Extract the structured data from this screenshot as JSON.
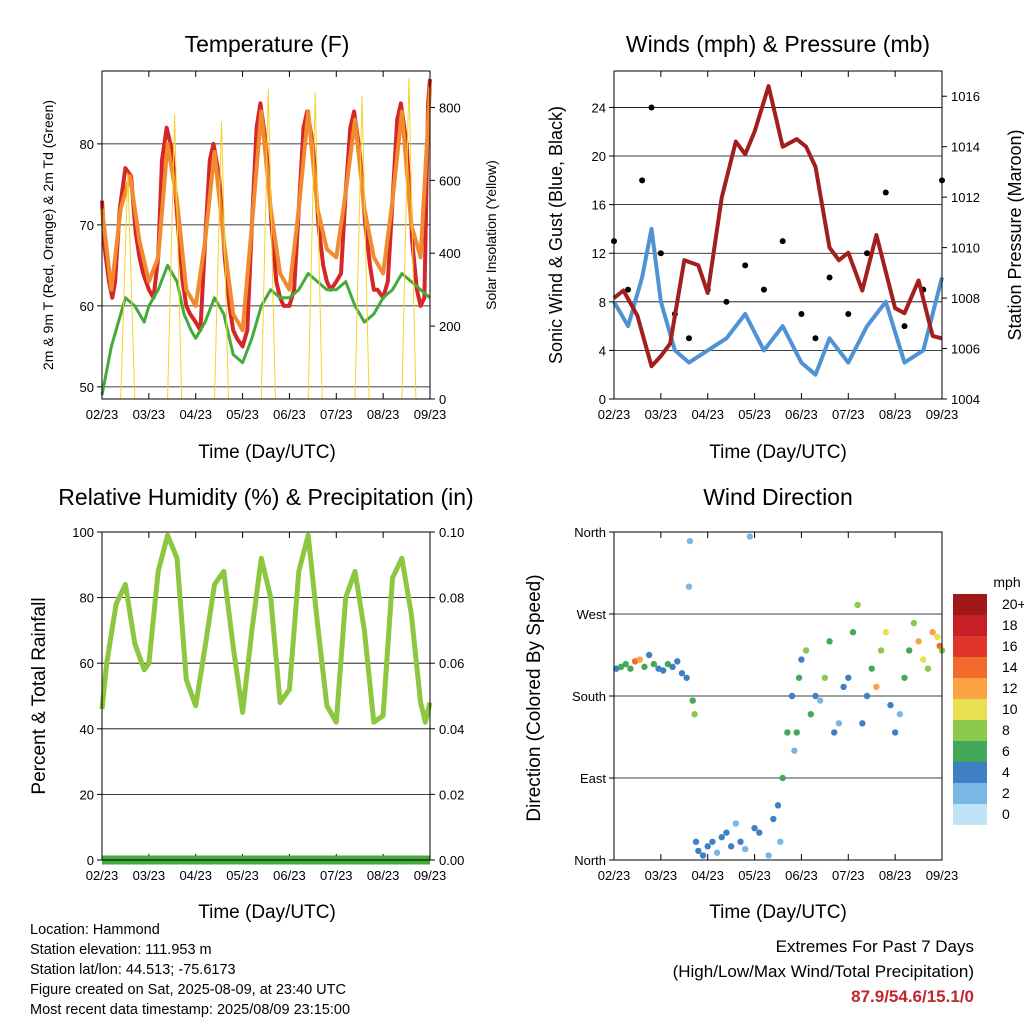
{
  "charts": {
    "temperature": {
      "title": "Temperature (F)",
      "xlabel": "Time (Day/UTC)",
      "ylabel_left": "2m & 9m T (Red, Orange) & 2m Td (Green)",
      "ylabel_right": "Solar Insolation (Yellow)"
    },
    "winds": {
      "title": "Winds (mph) & Pressure (mb)",
      "xlabel": "Time (Day/UTC)",
      "ylabel_left": "Sonic Wind & Gust (Blue, Black)",
      "ylabel_right": "Station Pressure (Maroon)"
    },
    "humidity": {
      "title": "Relative Humidity (%) & Precipitation (in)",
      "xlabel": "Time (Day/UTC)",
      "ylabel_left": "Percent & Total Rainfall"
    },
    "direction": {
      "title": "Wind Direction",
      "xlabel": "Time (Day/UTC)",
      "ylabel_left": "Direction (Colored By Speed)"
    }
  },
  "chart_data": [
    {
      "id": "temperature",
      "type": "line",
      "title": "Temperature (F)",
      "xlabel": "Time (Day/UTC)",
      "ylabel": "2m & 9m T (Red, Orange) & 2m Td (Green)",
      "y2label": "Solar Insolation (Yellow)",
      "x_ticks": [
        "02/23",
        "03/23",
        "04/23",
        "05/23",
        "06/23",
        "07/23",
        "08/23",
        "09/23"
      ],
      "ylim": [
        48.5,
        89
      ],
      "y_ticks": [
        50,
        60,
        70,
        80
      ],
      "y2lim": [
        0,
        900
      ],
      "y2_ticks": [
        0,
        200,
        400,
        600,
        800
      ],
      "grid": true,
      "series": [
        {
          "name": "2m T",
          "color": "#d62728",
          "x": [
            0,
            0.06,
            0.15,
            0.22,
            0.28,
            0.38,
            0.5,
            0.62,
            0.72,
            0.8,
            0.88,
            1.0,
            1.1,
            1.2,
            1.28,
            1.38,
            1.5,
            1.62,
            1.72,
            1.8,
            1.88,
            2.0,
            2.1,
            2.2,
            2.3,
            2.38,
            2.5,
            2.62,
            2.72,
            2.8,
            2.88,
            3.0,
            3.1,
            3.2,
            3.3,
            3.38,
            3.5,
            3.62,
            3.72,
            3.8,
            3.88,
            4.0,
            4.1,
            4.2,
            4.3,
            4.38,
            4.5,
            4.62,
            4.72,
            4.8,
            4.88,
            5.0,
            5.1,
            5.2,
            5.3,
            5.38,
            5.5,
            5.62,
            5.72,
            5.8,
            5.88,
            6.0,
            6.1,
            6.2,
            6.3,
            6.38,
            6.5,
            6.62,
            6.72,
            6.8,
            6.88,
            6.96,
            7.0
          ],
          "values": [
            73,
            67,
            63,
            61,
            63,
            72,
            77,
            76,
            69,
            66,
            64,
            62,
            61,
            66,
            78,
            82,
            79,
            70,
            63,
            60,
            59,
            58,
            57,
            68,
            78,
            80,
            76,
            66,
            60,
            57,
            56,
            55,
            57,
            70,
            82,
            85,
            80,
            70,
            63,
            61,
            60,
            60,
            62,
            72,
            82,
            84,
            80,
            70,
            65,
            63,
            62,
            63,
            64,
            74,
            82,
            84,
            79,
            70,
            65,
            62,
            62,
            61,
            63,
            73,
            83,
            85,
            80,
            68,
            62,
            60,
            61,
            85,
            88
          ]
        },
        {
          "name": "9m T",
          "color": "#f28a2e",
          "x": [
            0,
            0.2,
            0.4,
            0.6,
            0.8,
            1.0,
            1.2,
            1.4,
            1.6,
            1.8,
            2.0,
            2.2,
            2.4,
            2.6,
            2.8,
            3.0,
            3.2,
            3.4,
            3.6,
            3.8,
            4.0,
            4.2,
            4.4,
            4.6,
            4.8,
            5.0,
            5.2,
            5.4,
            5.6,
            5.8,
            6.0,
            6.2,
            6.4,
            6.6,
            6.8,
            7.0
          ],
          "values": [
            72,
            62,
            72,
            76,
            68,
            63,
            66,
            80,
            73,
            62,
            60,
            68,
            79,
            68,
            59,
            57,
            70,
            84,
            72,
            64,
            62,
            72,
            84,
            72,
            67,
            66,
            74,
            83,
            72,
            66,
            64,
            73,
            84,
            70,
            66,
            87
          ]
        },
        {
          "name": "2m Td",
          "color": "#44aa3c",
          "x": [
            0,
            0.1,
            0.2,
            0.35,
            0.5,
            0.7,
            0.9,
            1.0,
            1.2,
            1.4,
            1.6,
            1.75,
            1.9,
            2.0,
            2.2,
            2.4,
            2.6,
            2.8,
            3.0,
            3.2,
            3.4,
            3.6,
            3.8,
            4.0,
            4.2,
            4.4,
            4.6,
            4.8,
            5.0,
            5.2,
            5.4,
            5.6,
            5.8,
            6.0,
            6.2,
            6.4,
            6.6,
            6.8,
            7.0
          ],
          "values": [
            49,
            52,
            55,
            58,
            61,
            60,
            58,
            60,
            62,
            65,
            63,
            59,
            57,
            56,
            58,
            61,
            59,
            54,
            53,
            56,
            60,
            62,
            61,
            61,
            62,
            64,
            63,
            62,
            62,
            63,
            60,
            58,
            59,
            61,
            62,
            64,
            63,
            62,
            61
          ]
        },
        {
          "name": "Solar Insolation",
          "color": "#f5d327",
          "axis": "right",
          "x": [
            0.4,
            0.55,
            0.7,
            1.4,
            1.55,
            1.7,
            2.4,
            2.55,
            2.7,
            3.4,
            3.55,
            3.7,
            4.4,
            4.55,
            4.7,
            5.4,
            5.55,
            5.7,
            6.4,
            6.55,
            6.7
          ],
          "values": [
            0,
            620,
            0,
            0,
            780,
            0,
            0,
            760,
            0,
            0,
            850,
            0,
            0,
            840,
            0,
            0,
            830,
            0,
            0,
            880,
            0
          ]
        }
      ]
    },
    {
      "id": "winds",
      "type": "line",
      "title": "Winds (mph) & Pressure (mb)",
      "xlabel": "Time (Day/UTC)",
      "ylabel": "Sonic Wind & Gust (Blue, Black)",
      "y2label": "Station Pressure (Maroon)",
      "x_ticks": [
        "02/23",
        "03/23",
        "04/23",
        "05/23",
        "06/23",
        "07/23",
        "08/23",
        "09/23"
      ],
      "ylim": [
        0,
        27
      ],
      "y_ticks": [
        0,
        4,
        8,
        12,
        16,
        20,
        24
      ],
      "y2lim": [
        1004,
        1017
      ],
      "y2_ticks": [
        1004,
        1006,
        1008,
        1010,
        1012,
        1014,
        1016
      ],
      "grid": true,
      "series": [
        {
          "name": "Sonic Wind",
          "color": "#4f93d4",
          "x": [
            0,
            0.3,
            0.6,
            0.8,
            1.0,
            1.3,
            1.6,
            2.0,
            2.4,
            2.8,
            3.2,
            3.6,
            4.0,
            4.3,
            4.6,
            5.0,
            5.4,
            5.8,
            6.2,
            6.6,
            7.0
          ],
          "values": [
            8,
            6,
            10,
            14,
            8,
            4,
            3,
            4,
            5,
            7,
            4,
            6,
            3,
            2,
            5,
            3,
            6,
            8,
            3,
            4,
            10
          ]
        },
        {
          "name": "Gust",
          "color": "#000000",
          "x": [
            0,
            0.3,
            0.6,
            0.8,
            1.0,
            1.3,
            1.6,
            2.0,
            2.4,
            2.8,
            3.2,
            3.6,
            4.0,
            4.3,
            4.6,
            5.0,
            5.4,
            5.8,
            6.2,
            6.6,
            7.0
          ],
          "values": [
            13,
            9,
            18,
            24,
            12,
            7,
            5,
            9,
            8,
            11,
            9,
            13,
            7,
            5,
            10,
            7,
            12,
            17,
            6,
            9,
            18
          ]
        },
        {
          "name": "Station Pressure",
          "color": "#a31f1f",
          "axis": "right",
          "x": [
            0,
            0.2,
            0.5,
            0.8,
            1.0,
            1.2,
            1.5,
            1.8,
            2.0,
            2.3,
            2.6,
            2.8,
            3.0,
            3.3,
            3.6,
            3.9,
            4.1,
            4.3,
            4.6,
            4.8,
            5.0,
            5.3,
            5.6,
            6.0,
            6.2,
            6.5,
            6.8,
            7.0
          ],
          "values": [
            1008,
            1008.3,
            1007.3,
            1005.3,
            1005.7,
            1006.2,
            1009.5,
            1009.3,
            1008.2,
            1012,
            1014.2,
            1013.7,
            1014.6,
            1016.4,
            1014,
            1014.3,
            1014,
            1013.2,
            1010,
            1009.5,
            1009.8,
            1008.3,
            1010.5,
            1007.6,
            1007.4,
            1008.7,
            1006.5,
            1006.4
          ]
        }
      ]
    },
    {
      "id": "humidity",
      "type": "line",
      "title": "Relative Humidity (%) & Precipitation (in)",
      "xlabel": "Time (Day/UTC)",
      "ylabel": "Percent & Total Rainfall",
      "x_ticks": [
        "02/23",
        "03/23",
        "04/23",
        "05/23",
        "06/23",
        "07/23",
        "08/23",
        "09/23"
      ],
      "ylim": [
        0,
        100
      ],
      "y_ticks": [
        0,
        20,
        40,
        60,
        80,
        100
      ],
      "y2lim": [
        0,
        0.1
      ],
      "y2_ticks": [
        "0.00",
        "0.02",
        "0.04",
        "0.06",
        "0.08",
        "0.10"
      ],
      "grid": true,
      "series": [
        {
          "name": "Relative Humidity",
          "color": "#8dc63f",
          "x": [
            0,
            0.1,
            0.3,
            0.5,
            0.7,
            0.9,
            1.0,
            1.2,
            1.4,
            1.6,
            1.8,
            2.0,
            2.2,
            2.4,
            2.6,
            2.8,
            3.0,
            3.2,
            3.4,
            3.6,
            3.8,
            4.0,
            4.2,
            4.4,
            4.6,
            4.8,
            5.0,
            5.2,
            5.4,
            5.6,
            5.8,
            6.0,
            6.2,
            6.4,
            6.6,
            6.8,
            6.9,
            7.0
          ],
          "values": [
            46,
            60,
            78,
            84,
            66,
            58,
            60,
            88,
            99,
            92,
            55,
            47,
            65,
            84,
            88,
            65,
            45,
            70,
            92,
            80,
            48,
            52,
            88,
            99,
            72,
            47,
            42,
            80,
            88,
            70,
            42,
            44,
            86,
            92,
            75,
            48,
            42,
            48
          ]
        },
        {
          "name": "Precipitation",
          "color": "#44aa3c",
          "axis": "right",
          "x": [
            0,
            7
          ],
          "values": [
            0,
            0
          ]
        }
      ]
    },
    {
      "id": "direction",
      "type": "scatter",
      "title": "Wind Direction",
      "xlabel": "Time (Day/UTC)",
      "ylabel": "Direction (Colored By Speed)",
      "x_ticks": [
        "02/23",
        "03/23",
        "04/23",
        "05/23",
        "06/23",
        "07/23",
        "08/23",
        "09/23"
      ],
      "y_ticks": [
        "North",
        "East",
        "South",
        "West",
        "North"
      ],
      "ylim": [
        0,
        360
      ],
      "grid": true,
      "legend": {
        "title": "mph",
        "position": "right",
        "labels": [
          "20+",
          "18",
          "16",
          "14",
          "12",
          "10",
          "8",
          "6",
          "4",
          "2",
          "0"
        ],
        "colors": [
          "#a01818",
          "#c42025",
          "#e0352b",
          "#f26a2c",
          "#f9a342",
          "#e8e04f",
          "#8cc84b",
          "#43a857",
          "#3f80c4",
          "#7ab7e4",
          "#bfe4f8"
        ]
      },
      "points_x": [
        0.05,
        0.15,
        0.25,
        0.35,
        0.45,
        0.55,
        0.65,
        0.75,
        0.85,
        0.95,
        1.05,
        1.15,
        1.25,
        1.35,
        1.45,
        1.55,
        1.6,
        1.62,
        1.68,
        1.72,
        1.75,
        1.8,
        1.9,
        2.0,
        2.1,
        2.2,
        2.3,
        2.4,
        2.5,
        2.6,
        2.7,
        2.8,
        2.9,
        3.0,
        3.1,
        3.3,
        3.4,
        3.5,
        3.55,
        3.6,
        3.7,
        3.8,
        3.85,
        3.9,
        3.95,
        4.0,
        4.1,
        4.2,
        4.3,
        4.4,
        4.5,
        4.6,
        4.7,
        4.8,
        4.9,
        5.0,
        5.1,
        5.2,
        5.3,
        5.4,
        5.5,
        5.6,
        5.7,
        5.8,
        5.9,
        6.0,
        6.1,
        6.2,
        6.3,
        6.4,
        6.5,
        6.6,
        6.7,
        6.8,
        6.9,
        6.95,
        7.0
      ],
      "points_y": [
        210,
        212,
        215,
        210,
        218,
        220,
        212,
        225,
        215,
        210,
        208,
        215,
        212,
        218,
        205,
        200,
        300,
        350,
        175,
        160,
        20,
        10,
        5,
        15,
        20,
        8,
        25,
        30,
        15,
        40,
        20,
        12,
        355,
        35,
        30,
        5,
        45,
        60,
        20,
        90,
        140,
        180,
        120,
        140,
        200,
        220,
        230,
        160,
        180,
        175,
        200,
        240,
        140,
        150,
        190,
        200,
        250,
        280,
        150,
        180,
        210,
        190,
        230,
        250,
        170,
        140,
        160,
        200,
        230,
        260,
        240,
        220,
        210,
        250,
        245,
        235,
        230
      ],
      "points_speed": [
        4,
        5,
        6,
        5,
        14,
        12,
        6,
        4,
        5,
        3,
        4,
        5,
        4,
        3,
        4,
        4,
        2,
        2,
        6,
        8,
        4,
        3,
        4,
        3,
        4,
        2,
        3,
        4,
        3,
        2,
        3,
        2,
        1,
        4,
        3,
        2,
        3,
        4,
        2,
        5,
        6,
        3,
        2,
        5,
        6,
        4,
        7,
        6,
        3,
        2,
        8,
        6,
        3,
        2,
        4,
        3,
        6,
        8,
        4,
        3,
        6,
        12,
        8,
        10,
        4,
        3,
        2,
        5,
        6,
        8,
        12,
        10,
        8,
        12,
        10,
        14,
        8
      ]
    }
  ],
  "footer": {
    "location": "Location: Hammond",
    "elevation": "Station elevation: 111.953 m",
    "latlon": "Station lat/lon: 44.513; -75.6173",
    "created": "Figure created on Sat, 2025-08-09, at 23:40 UTC",
    "recent": "Most recent data timestamp: 2025/08/09 23:15:00"
  },
  "extremes": {
    "line1": "Extremes For Past 7 Days",
    "line2": "(High/Low/Max Wind/Total Precipitation)",
    "values": "87.9/54.6/15.1/0"
  }
}
